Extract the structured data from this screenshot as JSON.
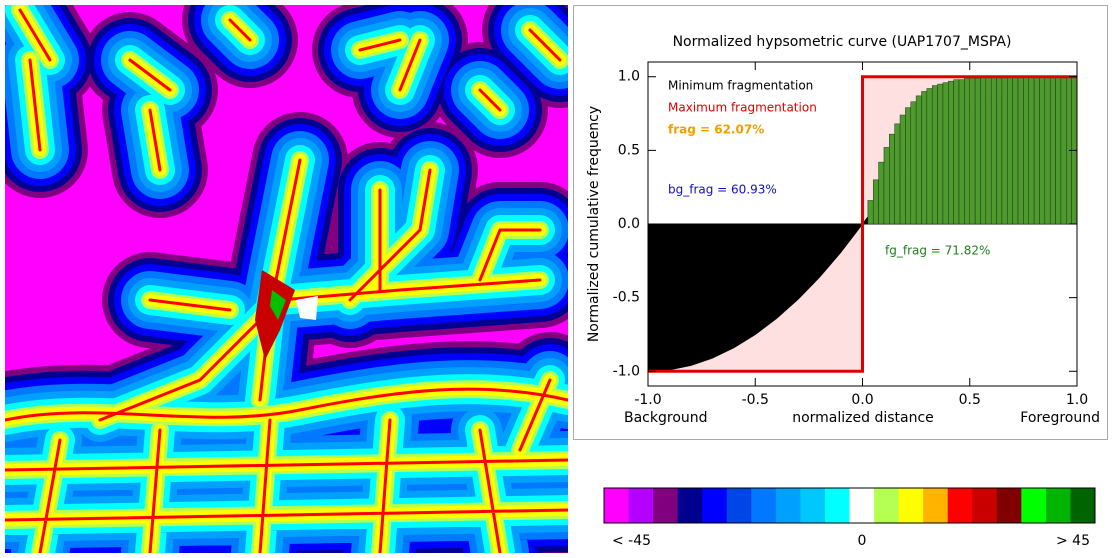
{
  "chart_data": {
    "type": "hypsometric",
    "title": "Normalized hypsometric curve (UAP1707_MSPA)",
    "x_label": "normalized distance",
    "y_label": "Normalized cumulative frequency",
    "x_end_labels": [
      "Background",
      "Foreground"
    ],
    "xlim": [
      -1,
      1
    ],
    "ylim": [
      -1.1,
      1.1
    ],
    "xticks": [
      {
        "value": -1,
        "label": "-1.0"
      },
      {
        "value": -0.5,
        "label": "-0.5"
      },
      {
        "value": 0,
        "label": "0.0"
      },
      {
        "value": 0.5,
        "label": "0.5"
      },
      {
        "value": 1,
        "label": "1.0"
      }
    ],
    "yticks": [
      {
        "value": -1,
        "label": "-1.0"
      },
      {
        "value": -0.5,
        "label": "-0.5"
      },
      {
        "value": 0,
        "label": "0.0"
      },
      {
        "value": 0.5,
        "label": "0.5"
      },
      {
        "value": 1,
        "label": "1.0"
      }
    ],
    "series": [
      {
        "name": "Minimum fragmentation",
        "color": "#000000",
        "x": [
          -1,
          -0.9,
          -0.8,
          -0.7,
          -0.6,
          -0.5,
          -0.4,
          -0.3,
          -0.2,
          -0.1,
          0,
          0.1,
          0.2,
          0.3,
          0.4,
          0.5,
          0.6,
          0.7,
          0.8,
          0.9,
          1
        ],
        "values": [
          -1,
          -0.99,
          -0.96,
          -0.91,
          -0.84,
          -0.75,
          -0.64,
          -0.51,
          -0.36,
          -0.19,
          0,
          0.19,
          0.36,
          0.51,
          0.64,
          0.75,
          0.84,
          0.91,
          0.96,
          0.99,
          1
        ]
      },
      {
        "name": "Maximum fragmentation",
        "color": "#e00000",
        "fill": "#ffe0e0",
        "x": [
          -1,
          0,
          0,
          1
        ],
        "values": [
          -1,
          -1,
          1,
          1
        ]
      }
    ],
    "histogram": {
      "color": "#4e9a2e",
      "bins": [
        0,
        0.025,
        0.05,
        0.075,
        0.1,
        0.125,
        0.15,
        0.175,
        0.2,
        0.225,
        0.25,
        0.275,
        0.3,
        0.325,
        0.35,
        0.375,
        0.4,
        0.425,
        0.45,
        0.475,
        0.5,
        0.525,
        0.55,
        0.575,
        0.6,
        0.625,
        0.65,
        0.675,
        0.7,
        0.725,
        0.75,
        0.775,
        0.8,
        0.825,
        0.85,
        0.875,
        0.9,
        0.925,
        0.95,
        0.975,
        1
      ],
      "values": [
        0,
        0.16,
        0.3,
        0.42,
        0.52,
        0.61,
        0.68,
        0.74,
        0.79,
        0.83,
        0.87,
        0.9,
        0.92,
        0.94,
        0.95,
        0.96,
        0.97,
        0.98,
        0.98,
        0.99,
        0.99,
        0.99,
        1,
        1,
        1,
        1,
        1,
        1,
        1,
        1,
        1,
        1,
        1,
        1,
        1,
        1,
        1,
        1,
        1,
        1
      ]
    },
    "annotations": [
      {
        "text": "frag = 62.07%",
        "color": "#f0a000"
      },
      {
        "text": "bg_frag = 60.93%",
        "color": "#1010c0"
      },
      {
        "text": "fg_frag = 71.82%",
        "color": "#208020"
      }
    ]
  },
  "colorbar": {
    "colors": [
      "#ff00ff",
      "#b400ff",
      "#800080",
      "#000090",
      "#0000ff",
      "#0046e6",
      "#0078ff",
      "#00a0ff",
      "#00c8ff",
      "#00ffff",
      "#ffffff",
      "#b4ff50",
      "#ffff00",
      "#ffb400",
      "#ff0000",
      "#c80000",
      "#800000",
      "#00ff00",
      "#00b400",
      "#006400"
    ],
    "labels": [
      "< -45",
      "0",
      "> 45"
    ]
  }
}
